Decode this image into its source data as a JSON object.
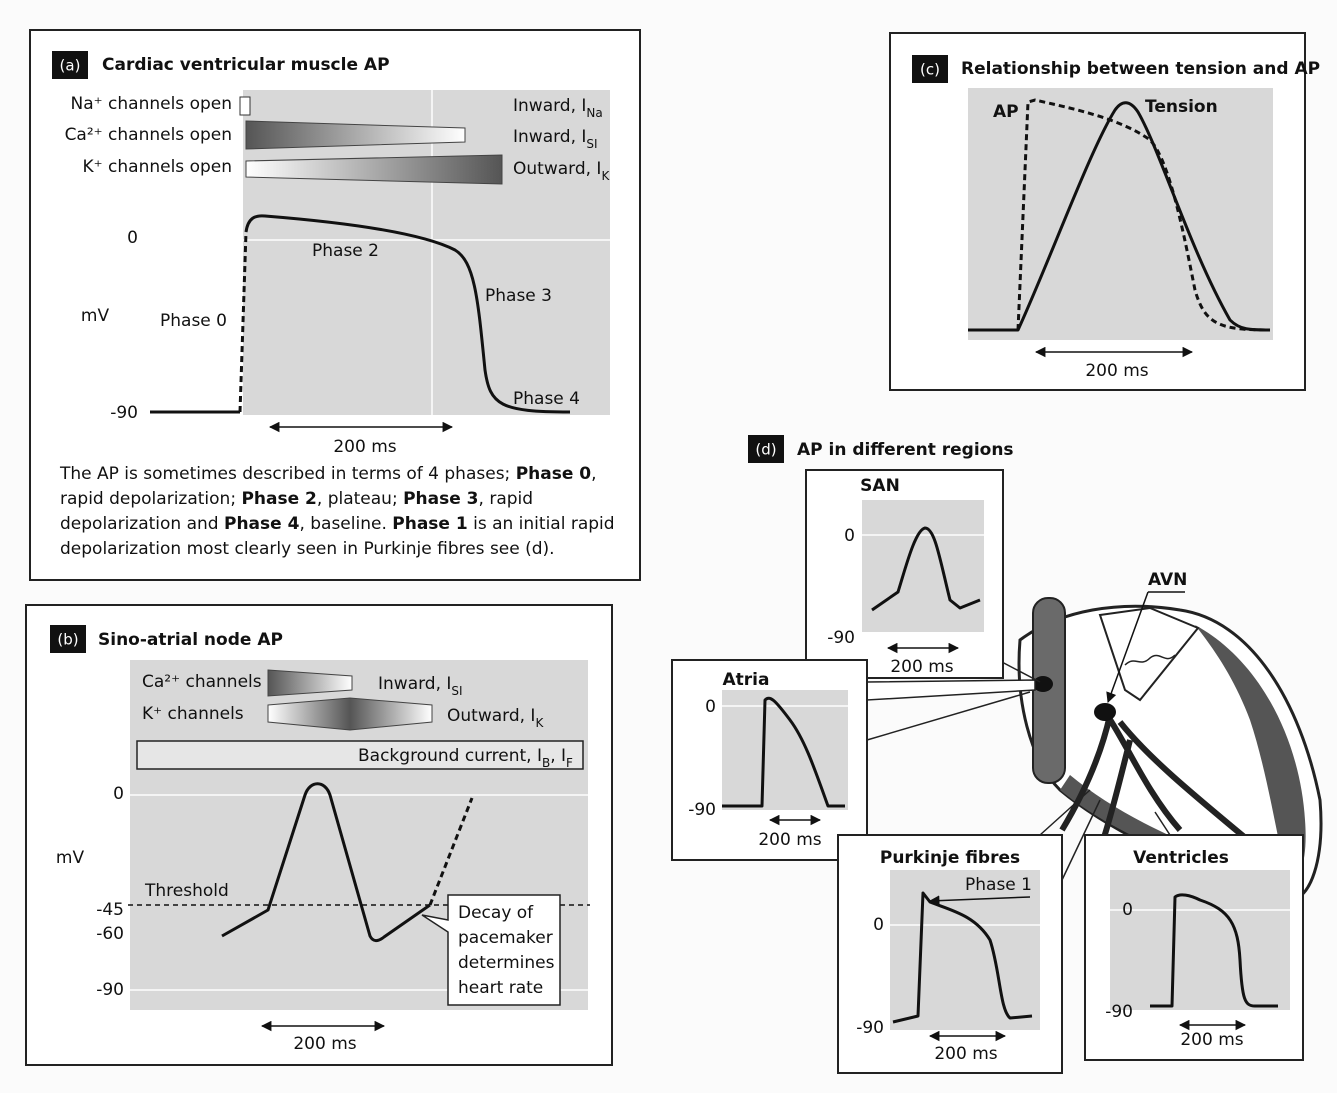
{
  "panel_a": {
    "tag": "(a)",
    "title": "Cardiac ventricular muscle AP",
    "channels": [
      {
        "label": "Na⁺ channels open",
        "current": [
          {
            "text": "Inward, I"
          },
          {
            "sub": "Na"
          }
        ]
      },
      {
        "label": "Ca²⁺ channels open",
        "current": [
          {
            "text": "Inward, I"
          },
          {
            "sub": "SI"
          }
        ]
      },
      {
        "label": "K⁺ channels open",
        "current": [
          {
            "text": "Outward, I"
          },
          {
            "sub": "K"
          }
        ]
      }
    ],
    "axis": {
      "top": "0",
      "bottom": "-90",
      "unit": "mV"
    },
    "phases": [
      "Phase 0",
      "Phase 2",
      "Phase 3",
      "Phase 4"
    ],
    "scale": "200 ms",
    "caption": [
      {
        "text": "The AP is sometimes described in terms of 4 phases; "
      },
      {
        "bold": "Phase 0"
      },
      {
        "text": ", rapid depolarization; "
      },
      {
        "bold": "Phase 2"
      },
      {
        "text": ", plateau; "
      },
      {
        "bold": "Phase 3"
      },
      {
        "text": ", rapid depolarization and "
      },
      {
        "bold": "Phase 4"
      },
      {
        "text": ", baseline. "
      },
      {
        "bold": "Phase 1"
      },
      {
        "text": " is an initial rapid depolarization most clearly seen in Purkinje fibres see (d)."
      }
    ]
  },
  "panel_b": {
    "tag": "(b)",
    "title": "Sino-atrial node AP",
    "channels": [
      {
        "label": "Ca²⁺ channels",
        "current": [
          {
            "text": "Inward, I"
          },
          {
            "sub": "SI"
          }
        ]
      },
      {
        "label": "K⁺ channels",
        "current": [
          {
            "text": "Outward, I"
          },
          {
            "sub": "K"
          }
        ]
      }
    ],
    "background": [
      {
        "text": "Background current, I"
      },
      {
        "sub": "B"
      },
      {
        "text": ", I"
      },
      {
        "sub": "F"
      }
    ],
    "axis": {
      "top": "0",
      "threshold": "-45",
      "pacemaker": "-60",
      "bottom": "-90",
      "unit": "mV"
    },
    "threshold_label": "Threshold",
    "callout": [
      "Decay of",
      "pacemaker",
      "determines",
      "heart rate"
    ],
    "scale": "200 ms"
  },
  "panel_c": {
    "tag": "(c)",
    "title": "Relationship between tension and AP",
    "curves": [
      "AP",
      "Tension"
    ],
    "scale": "200 ms"
  },
  "panel_d": {
    "tag": "(d)",
    "title": "AP in different regions",
    "avn": "AVN",
    "regions": [
      {
        "name": "SAN",
        "top": "0",
        "bottom": "-90",
        "scale": "200 ms"
      },
      {
        "name": "Atria",
        "top": "0",
        "bottom": "-90",
        "scale": "200 ms"
      },
      {
        "name": "Purkinje fibres",
        "top": "0",
        "bottom": "-90",
        "scale": "200 ms",
        "note": "Phase 1"
      },
      {
        "name": "Ventricles",
        "top": "0",
        "bottom": "-90",
        "scale": "200 ms"
      }
    ]
  }
}
